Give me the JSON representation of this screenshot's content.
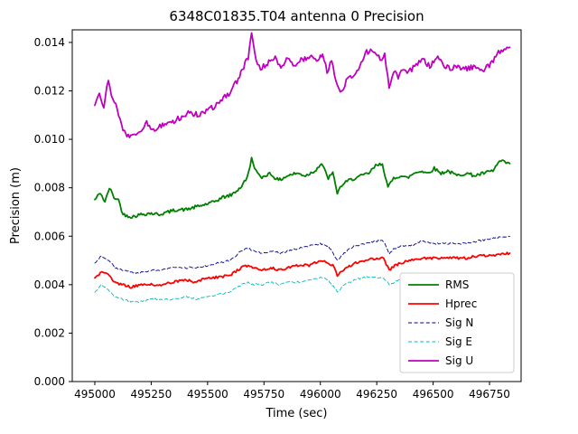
{
  "chart_data": {
    "type": "line",
    "title": "6348C01835.T04 antenna 0 Precision",
    "xlabel": "Time (sec)",
    "ylabel": "Precision (m)",
    "xlim": [
      494900,
      496890
    ],
    "ylim": [
      0,
      0.01452
    ],
    "xticks": [
      495000,
      495250,
      495500,
      495750,
      496000,
      496250,
      496500,
      496750
    ],
    "yticks": [
      0.0,
      0.002,
      0.004,
      0.006,
      0.008,
      0.01,
      0.012,
      0.014
    ],
    "grid": false,
    "axis_color": "#000000",
    "legend": {
      "position": "lower right",
      "background": "#ffffff",
      "border_color": "#cccccc",
      "entries": [
        "RMS",
        "Hprec",
        "Sig N",
        "Sig E",
        "Sig U"
      ]
    },
    "series": [
      {
        "name": "RMS",
        "color": "#008000",
        "style": "solid",
        "width": 1.8,
        "noise": 7e-05,
        "points": [
          [
            495000,
            0.0075
          ],
          [
            495025,
            0.0078
          ],
          [
            495045,
            0.0074
          ],
          [
            495065,
            0.008
          ],
          [
            495085,
            0.0076
          ],
          [
            495105,
            0.0075
          ],
          [
            495125,
            0.0069
          ],
          [
            495165,
            0.0068
          ],
          [
            495205,
            0.0069
          ],
          [
            495245,
            0.00695
          ],
          [
            495285,
            0.0069
          ],
          [
            495325,
            0.007
          ],
          [
            495365,
            0.0071
          ],
          [
            495405,
            0.0071
          ],
          [
            495445,
            0.0072
          ],
          [
            495485,
            0.0073
          ],
          [
            495525,
            0.0074
          ],
          [
            495565,
            0.0076
          ],
          [
            495605,
            0.0077
          ],
          [
            495645,
            0.008
          ],
          [
            495675,
            0.0084
          ],
          [
            495695,
            0.0092
          ],
          [
            495715,
            0.0087
          ],
          [
            495735,
            0.0084
          ],
          [
            495775,
            0.0086
          ],
          [
            495815,
            0.0083
          ],
          [
            495855,
            0.0085
          ],
          [
            495895,
            0.0086
          ],
          [
            495935,
            0.0085
          ],
          [
            495975,
            0.0087
          ],
          [
            496005,
            0.009
          ],
          [
            496035,
            0.0084
          ],
          [
            496055,
            0.0086
          ],
          [
            496075,
            0.0078
          ],
          [
            496095,
            0.0081
          ],
          [
            496125,
            0.0083
          ],
          [
            496155,
            0.0084
          ],
          [
            496185,
            0.0085
          ],
          [
            496215,
            0.0086
          ],
          [
            496245,
            0.0089
          ],
          [
            496275,
            0.009
          ],
          [
            496300,
            0.008
          ],
          [
            496325,
            0.0084
          ],
          [
            496355,
            0.0085
          ],
          [
            496385,
            0.0084
          ],
          [
            496415,
            0.0086
          ],
          [
            496445,
            0.0087
          ],
          [
            496475,
            0.0086
          ],
          [
            496505,
            0.0088
          ],
          [
            496535,
            0.0086
          ],
          [
            496565,
            0.0087
          ],
          [
            496605,
            0.0085
          ],
          [
            496645,
            0.0086
          ],
          [
            496685,
            0.0085
          ],
          [
            496725,
            0.0086
          ],
          [
            496765,
            0.0087
          ],
          [
            496795,
            0.0091
          ],
          [
            496840,
            0.009
          ]
        ]
      },
      {
        "name": "Hprec",
        "color": "#ff0000",
        "style": "solid",
        "width": 1.8,
        "noise": 5e-05,
        "points": [
          [
            495000,
            0.0043
          ],
          [
            495030,
            0.0045
          ],
          [
            495060,
            0.0044
          ],
          [
            495090,
            0.0041
          ],
          [
            495120,
            0.004
          ],
          [
            495160,
            0.0039
          ],
          [
            495200,
            0.004
          ],
          [
            495250,
            0.004
          ],
          [
            495300,
            0.004
          ],
          [
            495350,
            0.0041
          ],
          [
            495400,
            0.0042
          ],
          [
            495450,
            0.0041
          ],
          [
            495500,
            0.0043
          ],
          [
            495550,
            0.0043
          ],
          [
            495600,
            0.0044
          ],
          [
            495650,
            0.0047
          ],
          [
            495680,
            0.0048
          ],
          [
            495700,
            0.0047
          ],
          [
            495740,
            0.0046
          ],
          [
            495780,
            0.0047
          ],
          [
            495820,
            0.0046
          ],
          [
            495860,
            0.0047
          ],
          [
            495900,
            0.0048
          ],
          [
            495950,
            0.0048
          ],
          [
            496000,
            0.005
          ],
          [
            496030,
            0.0049
          ],
          [
            496055,
            0.0048
          ],
          [
            496075,
            0.0044
          ],
          [
            496105,
            0.0046
          ],
          [
            496150,
            0.0049
          ],
          [
            496200,
            0.005
          ],
          [
            496250,
            0.0051
          ],
          [
            496280,
            0.0051
          ],
          [
            496305,
            0.0046
          ],
          [
            496330,
            0.0048
          ],
          [
            496360,
            0.0049
          ],
          [
            496400,
            0.005
          ],
          [
            496450,
            0.0051
          ],
          [
            496500,
            0.0051
          ],
          [
            496550,
            0.0051
          ],
          [
            496600,
            0.0051
          ],
          [
            496650,
            0.0051
          ],
          [
            496700,
            0.0052
          ],
          [
            496750,
            0.0052
          ],
          [
            496840,
            0.0053
          ]
        ]
      },
      {
        "name": "Sig N",
        "color": "#00008b",
        "style": "dashed",
        "width": 0.9,
        "noise": 4e-05,
        "points": [
          [
            495000,
            0.0049
          ],
          [
            495030,
            0.0052
          ],
          [
            495060,
            0.005
          ],
          [
            495090,
            0.0047
          ],
          [
            495120,
            0.0046
          ],
          [
            495160,
            0.0045
          ],
          [
            495200,
            0.0045
          ],
          [
            495250,
            0.0046
          ],
          [
            495300,
            0.0046
          ],
          [
            495350,
            0.0047
          ],
          [
            495400,
            0.0047
          ],
          [
            495450,
            0.0047
          ],
          [
            495500,
            0.0048
          ],
          [
            495550,
            0.0049
          ],
          [
            495600,
            0.005
          ],
          [
            495650,
            0.0054
          ],
          [
            495680,
            0.0055
          ],
          [
            495700,
            0.0054
          ],
          [
            495740,
            0.0053
          ],
          [
            495780,
            0.0054
          ],
          [
            495820,
            0.0053
          ],
          [
            495860,
            0.0054
          ],
          [
            495900,
            0.0055
          ],
          [
            495950,
            0.0056
          ],
          [
            496000,
            0.0057
          ],
          [
            496035,
            0.0056
          ],
          [
            496075,
            0.005
          ],
          [
            496105,
            0.0053
          ],
          [
            496150,
            0.0056
          ],
          [
            496200,
            0.0057
          ],
          [
            496250,
            0.0058
          ],
          [
            496280,
            0.0058
          ],
          [
            496305,
            0.0053
          ],
          [
            496330,
            0.0055
          ],
          [
            496360,
            0.0056
          ],
          [
            496400,
            0.0056
          ],
          [
            496450,
            0.0058
          ],
          [
            496500,
            0.0057
          ],
          [
            496550,
            0.0057
          ],
          [
            496600,
            0.0057
          ],
          [
            496650,
            0.0057
          ],
          [
            496700,
            0.0058
          ],
          [
            496750,
            0.0059
          ],
          [
            496840,
            0.006
          ]
        ]
      },
      {
        "name": "Sig E",
        "color": "#00bcbc",
        "style": "dashed",
        "width": 0.9,
        "noise": 4e-05,
        "points": [
          [
            495000,
            0.0037
          ],
          [
            495030,
            0.004
          ],
          [
            495060,
            0.0038
          ],
          [
            495090,
            0.0035
          ],
          [
            495120,
            0.0034
          ],
          [
            495160,
            0.0033
          ],
          [
            495200,
            0.0033
          ],
          [
            495250,
            0.0034
          ],
          [
            495300,
            0.0034
          ],
          [
            495350,
            0.0034
          ],
          [
            495400,
            0.0035
          ],
          [
            495450,
            0.0034
          ],
          [
            495500,
            0.0035
          ],
          [
            495550,
            0.0036
          ],
          [
            495600,
            0.0037
          ],
          [
            495650,
            0.004
          ],
          [
            495680,
            0.0041
          ],
          [
            495700,
            0.004
          ],
          [
            495740,
            0.004
          ],
          [
            495780,
            0.0041
          ],
          [
            495820,
            0.004
          ],
          [
            495860,
            0.0041
          ],
          [
            495900,
            0.0041
          ],
          [
            495950,
            0.0042
          ],
          [
            496000,
            0.0043
          ],
          [
            496035,
            0.0042
          ],
          [
            496075,
            0.0037
          ],
          [
            496105,
            0.004
          ],
          [
            496150,
            0.0042
          ],
          [
            496200,
            0.0043
          ],
          [
            496250,
            0.0043
          ],
          [
            496280,
            0.0043
          ],
          [
            496305,
            0.004
          ],
          [
            496330,
            0.0041
          ],
          [
            496360,
            0.0042
          ],
          [
            496400,
            0.0042
          ],
          [
            496450,
            0.0043
          ],
          [
            496500,
            0.0043
          ],
          [
            496550,
            0.0043
          ],
          [
            496600,
            0.0043
          ],
          [
            496650,
            0.0043
          ],
          [
            496700,
            0.0043
          ],
          [
            496750,
            0.0044
          ],
          [
            496840,
            0.0044
          ]
        ]
      },
      {
        "name": "Sig U",
        "color": "#bf00bf",
        "style": "solid",
        "width": 1.8,
        "noise": 0.00011,
        "points": [
          [
            495000,
            0.0114
          ],
          [
            495020,
            0.0118
          ],
          [
            495040,
            0.0113
          ],
          [
            495060,
            0.0125
          ],
          [
            495080,
            0.0116
          ],
          [
            495100,
            0.0113
          ],
          [
            495125,
            0.0103
          ],
          [
            495160,
            0.0101
          ],
          [
            495200,
            0.0103
          ],
          [
            495230,
            0.0107
          ],
          [
            495260,
            0.0104
          ],
          [
            495300,
            0.0106
          ],
          [
            495340,
            0.0107
          ],
          [
            495380,
            0.0109
          ],
          [
            495420,
            0.0111
          ],
          [
            495460,
            0.011
          ],
          [
            495500,
            0.0112
          ],
          [
            495540,
            0.0114
          ],
          [
            495570,
            0.0117
          ],
          [
            495600,
            0.0119
          ],
          [
            495630,
            0.0124
          ],
          [
            495660,
            0.013
          ],
          [
            495680,
            0.0134
          ],
          [
            495695,
            0.01445
          ],
          [
            495715,
            0.0133
          ],
          [
            495735,
            0.0129
          ],
          [
            495760,
            0.0131
          ],
          [
            495800,
            0.0134
          ],
          [
            495825,
            0.0129
          ],
          [
            495850,
            0.0133
          ],
          [
            495885,
            0.0131
          ],
          [
            495920,
            0.0133
          ],
          [
            495960,
            0.0134
          ],
          [
            495995,
            0.0133
          ],
          [
            496010,
            0.0136
          ],
          [
            496030,
            0.0128
          ],
          [
            496050,
            0.0132
          ],
          [
            496075,
            0.0122
          ],
          [
            496095,
            0.0119
          ],
          [
            496115,
            0.0124
          ],
          [
            496145,
            0.0126
          ],
          [
            496175,
            0.013
          ],
          [
            496205,
            0.0136
          ],
          [
            496235,
            0.0137
          ],
          [
            496265,
            0.0133
          ],
          [
            496285,
            0.0135
          ],
          [
            496305,
            0.0122
          ],
          [
            496325,
            0.0128
          ],
          [
            496345,
            0.0126
          ],
          [
            496365,
            0.0129
          ],
          [
            496385,
            0.0127
          ],
          [
            496405,
            0.0129
          ],
          [
            496425,
            0.0131
          ],
          [
            496455,
            0.0133
          ],
          [
            496485,
            0.013
          ],
          [
            496515,
            0.0134
          ],
          [
            496545,
            0.0131
          ],
          [
            496575,
            0.0129
          ],
          [
            496605,
            0.013
          ],
          [
            496645,
            0.0129
          ],
          [
            496685,
            0.013
          ],
          [
            496725,
            0.0129
          ],
          [
            496755,
            0.0131
          ],
          [
            496790,
            0.0136
          ],
          [
            496840,
            0.0138
          ]
        ]
      }
    ]
  }
}
